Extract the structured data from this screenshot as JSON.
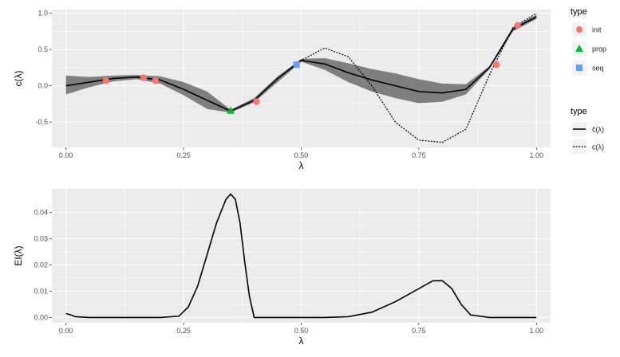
{
  "chart_data": [
    {
      "type": "line",
      "xlabel": "λ",
      "ylabel": "c(λ)",
      "xlim": [
        -0.03,
        1.03
      ],
      "ylim": [
        -0.85,
        1.05
      ],
      "xticks": [
        0.0,
        0.25,
        0.5,
        0.75,
        1.0
      ],
      "xtick_labels": [
        "0.00",
        "0.25",
        "0.50",
        "0.75",
        "1.00"
      ],
      "yticks": [
        -0.5,
        0.0,
        0.5,
        1.0
      ],
      "ytick_labels": [
        "-0.5",
        "0.0",
        "0.5",
        "1.0"
      ],
      "grid": true,
      "x": [
        0.0,
        0.05,
        0.1,
        0.15,
        0.2,
        0.25,
        0.3,
        0.35,
        0.4,
        0.45,
        0.5,
        0.55,
        0.6,
        0.65,
        0.7,
        0.75,
        0.8,
        0.85,
        0.9,
        0.95,
        1.0
      ],
      "series": [
        {
          "name": "ĉ(λ)",
          "line": "solid",
          "values": [
            0.0,
            0.05,
            0.1,
            0.12,
            0.08,
            -0.05,
            -0.2,
            -0.35,
            -0.2,
            0.1,
            0.35,
            0.3,
            0.18,
            0.08,
            0.0,
            -0.08,
            -0.1,
            -0.05,
            0.25,
            0.78,
            0.95
          ]
        },
        {
          "name": "c(λ)",
          "line": "dotted",
          "values": [
            0.0,
            0.05,
            0.1,
            0.12,
            0.08,
            -0.05,
            -0.2,
            -0.35,
            -0.2,
            0.1,
            0.35,
            0.52,
            0.4,
            0.0,
            -0.5,
            -0.75,
            -0.78,
            -0.6,
            0.15,
            0.8,
            1.0
          ]
        }
      ],
      "band": {
        "lower": [
          -0.12,
          -0.02,
          0.06,
          0.09,
          0.03,
          -0.13,
          -0.32,
          -0.37,
          -0.23,
          0.05,
          0.33,
          0.22,
          0.05,
          -0.08,
          -0.17,
          -0.24,
          -0.22,
          -0.12,
          0.23,
          0.75,
          0.92
        ],
        "upper": [
          0.14,
          0.12,
          0.14,
          0.15,
          0.13,
          0.05,
          -0.08,
          -0.33,
          -0.17,
          0.13,
          0.37,
          0.38,
          0.31,
          0.23,
          0.17,
          0.09,
          0.03,
          0.02,
          0.27,
          0.81,
          0.98
        ]
      },
      "points": [
        {
          "type": "init",
          "x": 0.085,
          "y": 0.07
        },
        {
          "type": "init",
          "x": 0.165,
          "y": 0.11
        },
        {
          "type": "init",
          "x": 0.19,
          "y": 0.07
        },
        {
          "type": "prop",
          "x": 0.35,
          "y": -0.34
        },
        {
          "type": "init",
          "x": 0.405,
          "y": -0.22
        },
        {
          "type": "seq",
          "x": 0.49,
          "y": 0.29
        },
        {
          "type": "init",
          "x": 0.915,
          "y": 0.29
        },
        {
          "type": "init",
          "x": 0.96,
          "y": 0.83
        }
      ],
      "legends": [
        {
          "title": "type",
          "items": [
            {
              "label": "init",
              "shape": "circle",
              "color": "#f8766d"
            },
            {
              "label": "prop",
              "shape": "triangle",
              "color": "#00ba38"
            },
            {
              "label": "seq",
              "shape": "square",
              "color": "#619cff"
            }
          ]
        },
        {
          "title": "type",
          "items": [
            {
              "label": "ĉ(λ)",
              "line": "solid"
            },
            {
              "label": "c(λ)",
              "line": "dotted"
            }
          ]
        }
      ]
    },
    {
      "type": "line",
      "xlabel": "λ",
      "ylabel": "EI(λ)",
      "xlim": [
        -0.03,
        1.03
      ],
      "ylim": [
        -0.002,
        0.049
      ],
      "xticks": [
        0.0,
        0.25,
        0.5,
        0.75,
        1.0
      ],
      "xtick_labels": [
        "0.00",
        "0.25",
        "0.50",
        "0.75",
        "1.00"
      ],
      "yticks": [
        0.0,
        0.01,
        0.02,
        0.03,
        0.04
      ],
      "ytick_labels": [
        "0.00",
        "0.01",
        "0.02",
        "0.03",
        "0.04"
      ],
      "grid": true,
      "x": [
        0.0,
        0.01,
        0.02,
        0.05,
        0.1,
        0.2,
        0.24,
        0.26,
        0.28,
        0.3,
        0.32,
        0.34,
        0.35,
        0.36,
        0.37,
        0.38,
        0.39,
        0.4,
        0.45,
        0.5,
        0.55,
        0.6,
        0.65,
        0.7,
        0.75,
        0.78,
        0.8,
        0.82,
        0.84,
        0.86,
        0.9,
        1.0
      ],
      "series": [
        {
          "name": "",
          "line": "solid",
          "values": [
            0.0015,
            0.001,
            0.0003,
            0.0,
            0.0,
            0.0,
            0.0005,
            0.004,
            0.012,
            0.024,
            0.036,
            0.045,
            0.047,
            0.045,
            0.036,
            0.021,
            0.008,
            0.0,
            0.0,
            0.0,
            0.0,
            0.0003,
            0.002,
            0.006,
            0.011,
            0.014,
            0.014,
            0.011,
            0.005,
            0.001,
            0.0,
            0.0
          ]
        }
      ]
    }
  ]
}
